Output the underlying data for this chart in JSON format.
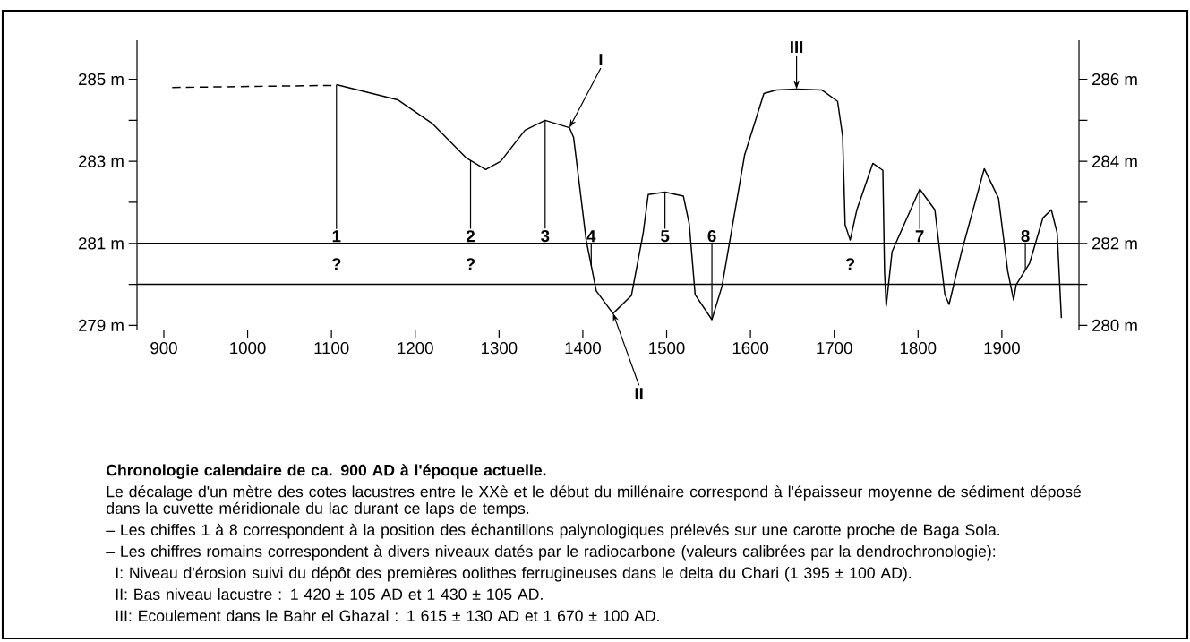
{
  "chart_data": {
    "type": "line",
    "title": "Chronologie calendaire de ca. 900 AD à l'époque actuelle.",
    "xlim": [
      868,
      1992
    ],
    "xticks": [
      900,
      1000,
      1100,
      1200,
      1300,
      1400,
      1500,
      1600,
      1700,
      1800,
      1900
    ],
    "ylim": [
      278.9,
      285.95
    ],
    "yticks": [
      {
        "value": 279,
        "label": "279 m"
      },
      {
        "value": 280,
        "label": null
      },
      {
        "value": 281,
        "label": "281 m"
      },
      {
        "value": 282,
        "label": null
      },
      {
        "value": 283,
        "label": "283 m"
      },
      {
        "value": 284,
        "label": null
      },
      {
        "value": 285,
        "label": "285 m"
      }
    ],
    "y2lim": [
      279.9,
      286.95
    ],
    "y2ticks": [
      {
        "value": 280,
        "label": "280 m"
      },
      {
        "value": 281,
        "label": null
      },
      {
        "value": 282,
        "label": "282 m"
      },
      {
        "value": 283,
        "label": null
      },
      {
        "value": 284,
        "label": "284 m"
      },
      {
        "value": 285,
        "label": null
      },
      {
        "value": 286,
        "label": "286 m"
      }
    ],
    "series": [
      {
        "color": "#000000",
        "line_style": "dashed",
        "x": [
          910,
          1100
        ],
        "values": [
          284.8,
          284.85
        ]
      },
      {
        "color": "#000000",
        "line_style": "solid",
        "x": [
          1106,
          1179,
          1221,
          1261,
          1284,
          1302,
          1331,
          1355,
          1384,
          1389,
          1404,
          1416,
          1436,
          1458,
          1472,
          1478,
          1498,
          1520,
          1527,
          1534,
          1554,
          1566,
          1593,
          1616,
          1631,
          1655,
          1685,
          1704,
          1710,
          1713,
          1719,
          1727,
          1746,
          1758,
          1760,
          1762,
          1769,
          1802,
          1820,
          1832,
          1837,
          1852,
          1879,
          1896,
          1907,
          1914,
          1917,
          1933,
          1949,
          1959,
          1966,
          1971
        ],
        "values": [
          284.87,
          284.5,
          283.91,
          283.08,
          282.8,
          283.0,
          283.76,
          284.0,
          283.82,
          283.58,
          281.08,
          279.84,
          279.29,
          279.73,
          281.25,
          282.19,
          282.25,
          282.15,
          281.47,
          279.75,
          279.14,
          279.95,
          283.15,
          284.65,
          284.74,
          284.76,
          284.74,
          284.46,
          283.61,
          281.45,
          281.08,
          281.82,
          282.95,
          282.78,
          280.32,
          279.47,
          280.8,
          282.32,
          281.82,
          279.75,
          279.51,
          280.8,
          282.82,
          282.1,
          280.32,
          279.62,
          279.99,
          280.51,
          281.62,
          281.82,
          281.25,
          279.18
        ]
      }
    ],
    "ref_lines": [
      {
        "axis": "y",
        "value": 281,
        "color": "#000000"
      },
      {
        "axis": "y",
        "value": 280,
        "color": "#000000"
      }
    ],
    "annotations": [
      {
        "text": "1",
        "x": 1106,
        "y": 284.87
      },
      {
        "text": "2",
        "x": 1266,
        "y": 283.02
      },
      {
        "text": "3",
        "x": 1355,
        "y": 284.0
      },
      {
        "text": "4",
        "x": 1410,
        "y": 280.46
      },
      {
        "text": "5",
        "x": 1498,
        "y": 282.25
      },
      {
        "text": "6",
        "x": 1554,
        "y": 279.14
      },
      {
        "text": "7",
        "x": 1802,
        "y": 282.32
      },
      {
        "text": "8",
        "x": 1928,
        "y": 280.35
      },
      "?",
      "?",
      {
        "text": "?",
        "x": 1719,
        "y": 281.08
      },
      {
        "text": "I",
        "x": 1384,
        "y": 283.82
      },
      {
        "text": "II",
        "x": 1436,
        "y": 279.3
      },
      {
        "text": "III",
        "x": 1655,
        "y": 284.76
      },
      "Le décalage d'un mètre des cotes lacustres entre le XXè et le début du millénaire correspond à l'épaisseur moyenne de sédiment déposé dans la cuvette méridionale du lac durant ce laps de temps.",
      "– Les chiffes 1 à 8 correspondent à la position des échantillons palynologiques prélevés sur une carotte proche de Baga Sola.",
      "– Les chiffres romains correspondent à divers niveaux datés par le radiocarbone (valeurs calibrées par la dendrochronologie):",
      "I:  Niveau d'érosion suivi du dépôt des premières oolithes ferrugineuses dans le delta du Chari (1 395 ± 100 AD).",
      "II:  Bas niveau lacustre : 1 420 ± 105 AD et 1 430 ± 105 AD.",
      "III:  Ecoulement dans le Bahr el Ghazal : 1 615 ± 130 AD et 1 670 ± 100 AD."
    ]
  }
}
